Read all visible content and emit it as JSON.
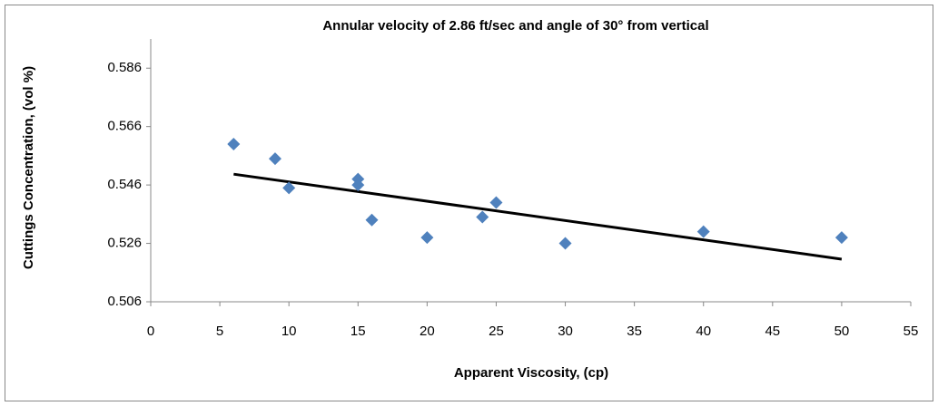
{
  "chart_data": {
    "type": "scatter",
    "title": "Annular velocity of 2.86 ft/sec and angle of 30° from vertical",
    "x_label": "Apparent Viscosity,  (cp)",
    "y_label": "Cuttings Concentration, (vol %)",
    "series": [
      {
        "color": "#4f81bd",
        "x": [
          6,
          9,
          10,
          15,
          15,
          16,
          20,
          24,
          25,
          30,
          40,
          50
        ],
        "values": [
          0.56,
          0.555,
          0.545,
          0.548,
          0.546,
          0.534,
          0.528,
          0.535,
          0.54,
          0.526,
          0.53,
          0.528
        ]
      }
    ],
    "trendline": {
      "color": "#000000",
      "x": [
        6,
        50
      ],
      "values": [
        0.5497,
        0.5206
      ]
    },
    "xlim": [
      0,
      55
    ],
    "xticks": [
      0,
      5,
      10,
      15,
      20,
      25,
      30,
      35,
      40,
      45,
      50,
      55
    ],
    "ylim": [
      0.506,
      0.596
    ],
    "yticks": [
      0.506,
      0.526,
      0.546,
      0.566,
      0.586
    ],
    "grid": false
  }
}
